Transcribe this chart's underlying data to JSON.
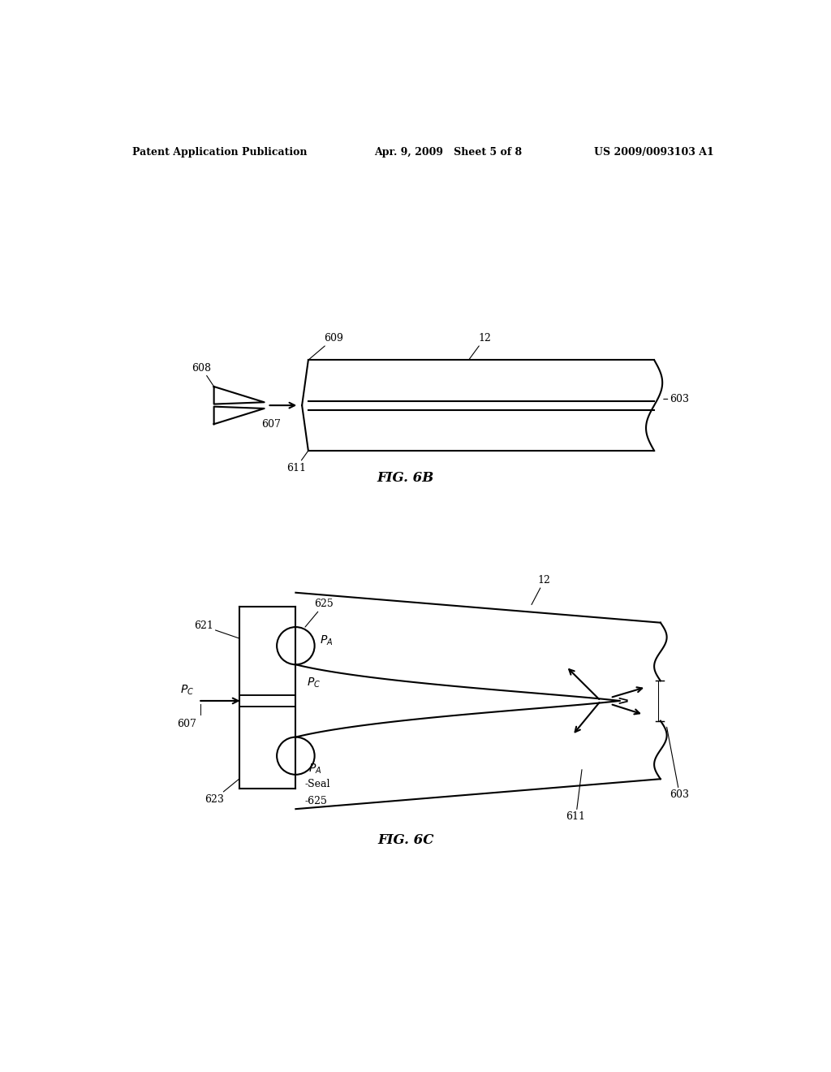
{
  "bg_color": "#ffffff",
  "header_left": "Patent Application Publication",
  "header_mid": "Apr. 9, 2009   Sheet 5 of 8",
  "header_right": "US 2009/0093103 A1",
  "fig6b_label": "FIG. 6B",
  "fig6c_label": "FIG. 6C",
  "line_color": "#000000",
  "lw": 1.5,
  "fs": 9,
  "fig_fs": 12
}
